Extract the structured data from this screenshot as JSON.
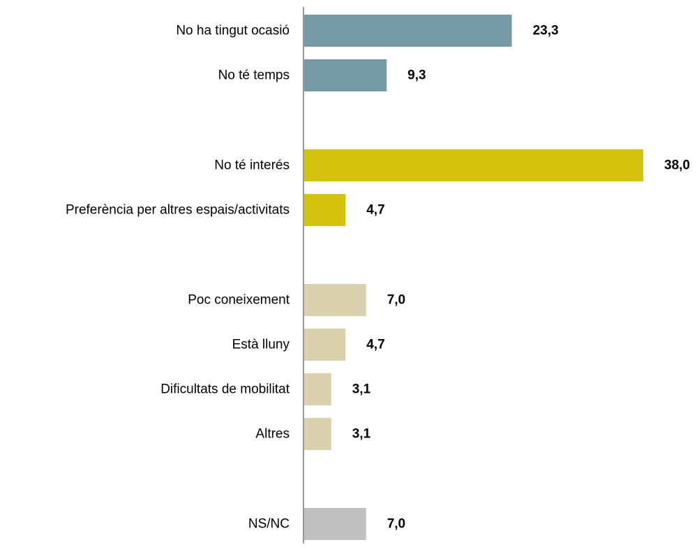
{
  "chart_data": {
    "type": "bar",
    "orientation": "horizontal",
    "categories": [
      "No ha tingut ocasió",
      "No té temps",
      "No té interés",
      "Preferència per altres espais/activitats",
      "Poc coneixement",
      "Està lluny",
      "Dificultats de mobilitat",
      "Altres",
      "NS/NC"
    ],
    "values": [
      23.3,
      9.3,
      38.0,
      4.7,
      7.0,
      4.7,
      3.1,
      3.1,
      7.0
    ],
    "value_labels": [
      "23,3",
      "9,3",
      "38,0",
      "4,7",
      "7,0",
      "4,7",
      "3,1",
      "3,1",
      "7,0"
    ],
    "groups": [
      0,
      0,
      1,
      1,
      2,
      2,
      2,
      2,
      3
    ],
    "group_colors": [
      "#7599a5",
      "#d2c40e",
      "#d9d0ad",
      "#c0c0c0"
    ],
    "title": "",
    "xlabel": "",
    "ylabel": "",
    "xlim": [
      0,
      38
    ],
    "grid": false,
    "legend": "none"
  }
}
